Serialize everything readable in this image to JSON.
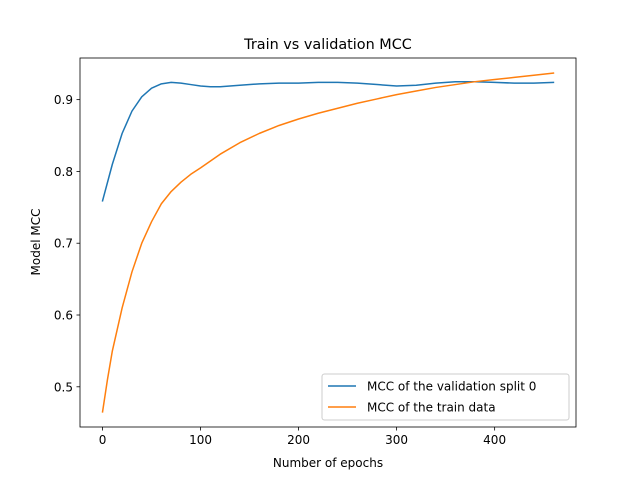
{
  "chart_data": {
    "type": "line",
    "title": "Train vs validation MCC",
    "xlabel": "Number of epochs",
    "ylabel": "Model MCC",
    "xlim": [
      -23,
      483
    ],
    "ylim": [
      0.444,
      0.958
    ],
    "xticks": [
      0,
      100,
      200,
      300,
      400
    ],
    "yticks": [
      0.5,
      0.6,
      0.7,
      0.8,
      0.9
    ],
    "xtick_labels": [
      "0",
      "100",
      "200",
      "300",
      "400"
    ],
    "ytick_labels": [
      "0.5",
      "0.6",
      "0.7",
      "0.8",
      "0.9"
    ],
    "grid": false,
    "legend_position": "lower right",
    "series": [
      {
        "name": "MCC of the validation split 0",
        "color": "#1f77b4",
        "x": [
          0,
          10,
          20,
          30,
          40,
          50,
          60,
          70,
          80,
          90,
          100,
          110,
          120,
          140,
          160,
          180,
          200,
          220,
          240,
          260,
          280,
          300,
          320,
          340,
          360,
          380,
          400,
          420,
          440,
          460
        ],
        "y": [
          0.759,
          0.81,
          0.853,
          0.884,
          0.904,
          0.916,
          0.922,
          0.924,
          0.923,
          0.921,
          0.919,
          0.918,
          0.918,
          0.92,
          0.922,
          0.923,
          0.923,
          0.924,
          0.924,
          0.923,
          0.921,
          0.919,
          0.92,
          0.923,
          0.925,
          0.925,
          0.924,
          0.923,
          0.923,
          0.924
        ]
      },
      {
        "name": "MCC of the train data",
        "color": "#ff7f0e",
        "x": [
          0,
          5,
          10,
          20,
          30,
          40,
          50,
          60,
          70,
          80,
          90,
          100,
          120,
          140,
          160,
          180,
          200,
          220,
          240,
          260,
          280,
          300,
          320,
          340,
          360,
          380,
          400,
          420,
          440,
          460
        ],
        "y": [
          0.465,
          0.51,
          0.55,
          0.61,
          0.66,
          0.7,
          0.73,
          0.755,
          0.772,
          0.785,
          0.796,
          0.805,
          0.824,
          0.84,
          0.853,
          0.864,
          0.873,
          0.881,
          0.888,
          0.895,
          0.901,
          0.907,
          0.912,
          0.917,
          0.921,
          0.925,
          0.928,
          0.931,
          0.934,
          0.937
        ]
      }
    ]
  }
}
